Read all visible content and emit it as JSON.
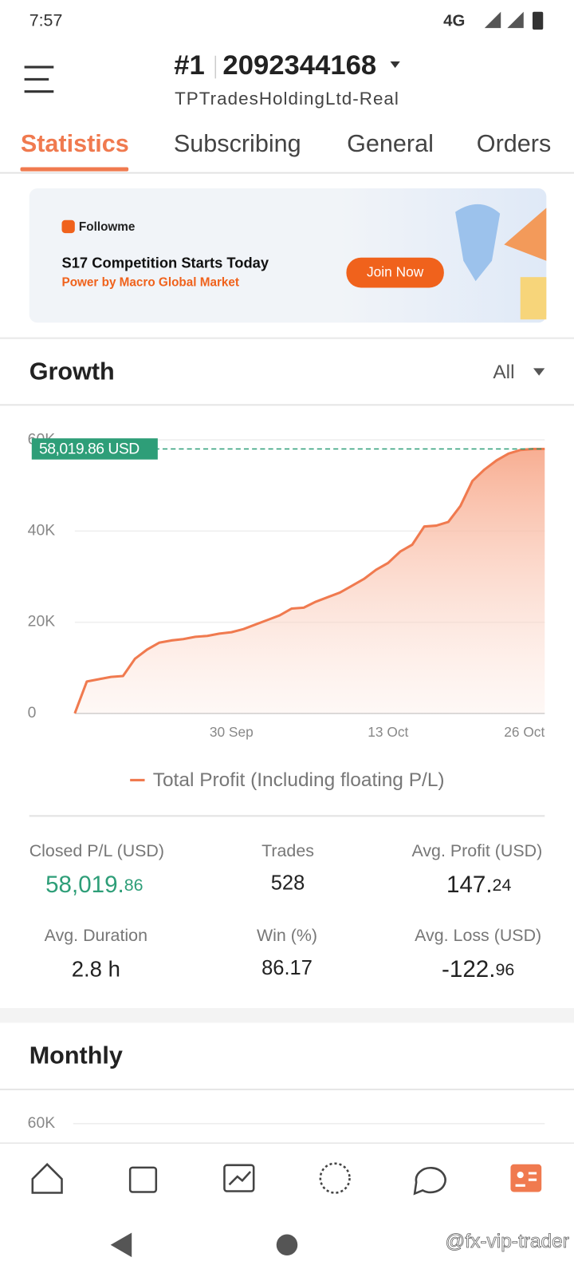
{
  "status_bar": {
    "time": "7:57",
    "network": "4G"
  },
  "header": {
    "rank": "#1",
    "account": "2092344168",
    "broker": "TPTradesHoldingLtd-Real"
  },
  "tabs": [
    "Statistics",
    "Subscribing",
    "General",
    "Orders"
  ],
  "banner": {
    "brand": "Followme",
    "headline": "S17 Competition Starts Today",
    "subline": "Power by Macro Global Market",
    "button": "Join Now"
  },
  "growth": {
    "title": "Growth",
    "filter": "All"
  },
  "chart_data": {
    "type": "line",
    "categories": [
      null,
      null,
      null,
      null,
      null,
      null,
      null,
      null,
      null,
      null,
      null,
      null,
      null,
      "30 Sep",
      null,
      null,
      null,
      null,
      null,
      null,
      null,
      null,
      null,
      null,
      null,
      null,
      "13 Oct",
      null,
      null,
      null,
      null,
      null,
      null,
      null,
      null,
      null,
      null,
      null,
      null,
      "26 Oct"
    ],
    "series": [
      {
        "name": "Total Profit (Including floating P/L)",
        "color": "#f07a4f",
        "values": [
          0,
          7000,
          7500,
          8000,
          8200,
          12000,
          14000,
          15500,
          16000,
          16300,
          16800,
          17000,
          17500,
          17800,
          18500,
          19500,
          20500,
          21500,
          23000,
          23200,
          24500,
          25500,
          26500,
          28000,
          29500,
          31500,
          33000,
          35500,
          37000,
          41000,
          41200,
          42000,
          45500,
          51000,
          53500,
          55500,
          57000,
          57800,
          58000,
          58019.86
        ]
      }
    ],
    "ylim": [
      0,
      60000
    ],
    "yticks": [
      0,
      {
        "value": 20000,
        "label": "20K"
      },
      {
        "value": 40000,
        "label": "40K"
      },
      {
        "value": 60000,
        "label": "60K"
      }
    ],
    "grid": true,
    "annotation": "58,019.86 USD"
  },
  "stats": [
    {
      "label": "Closed P/L (USD)",
      "int": "58,019.",
      "dec": "86"
    },
    {
      "label": "Trades",
      "value": "528"
    },
    {
      "label": "Avg. Profit (USD)",
      "int": "147.",
      "dec": "24"
    },
    {
      "label": "Avg. Duration",
      "value": "2.8 h"
    },
    {
      "label": "Win (%)",
      "value": "86.17"
    },
    {
      "label": "Avg. Loss (USD)",
      "int": "-122.",
      "dec": "96"
    }
  ],
  "monthly": {
    "title": "Monthly",
    "ytick": "60K"
  },
  "watermark": "@fx-vip-trader"
}
